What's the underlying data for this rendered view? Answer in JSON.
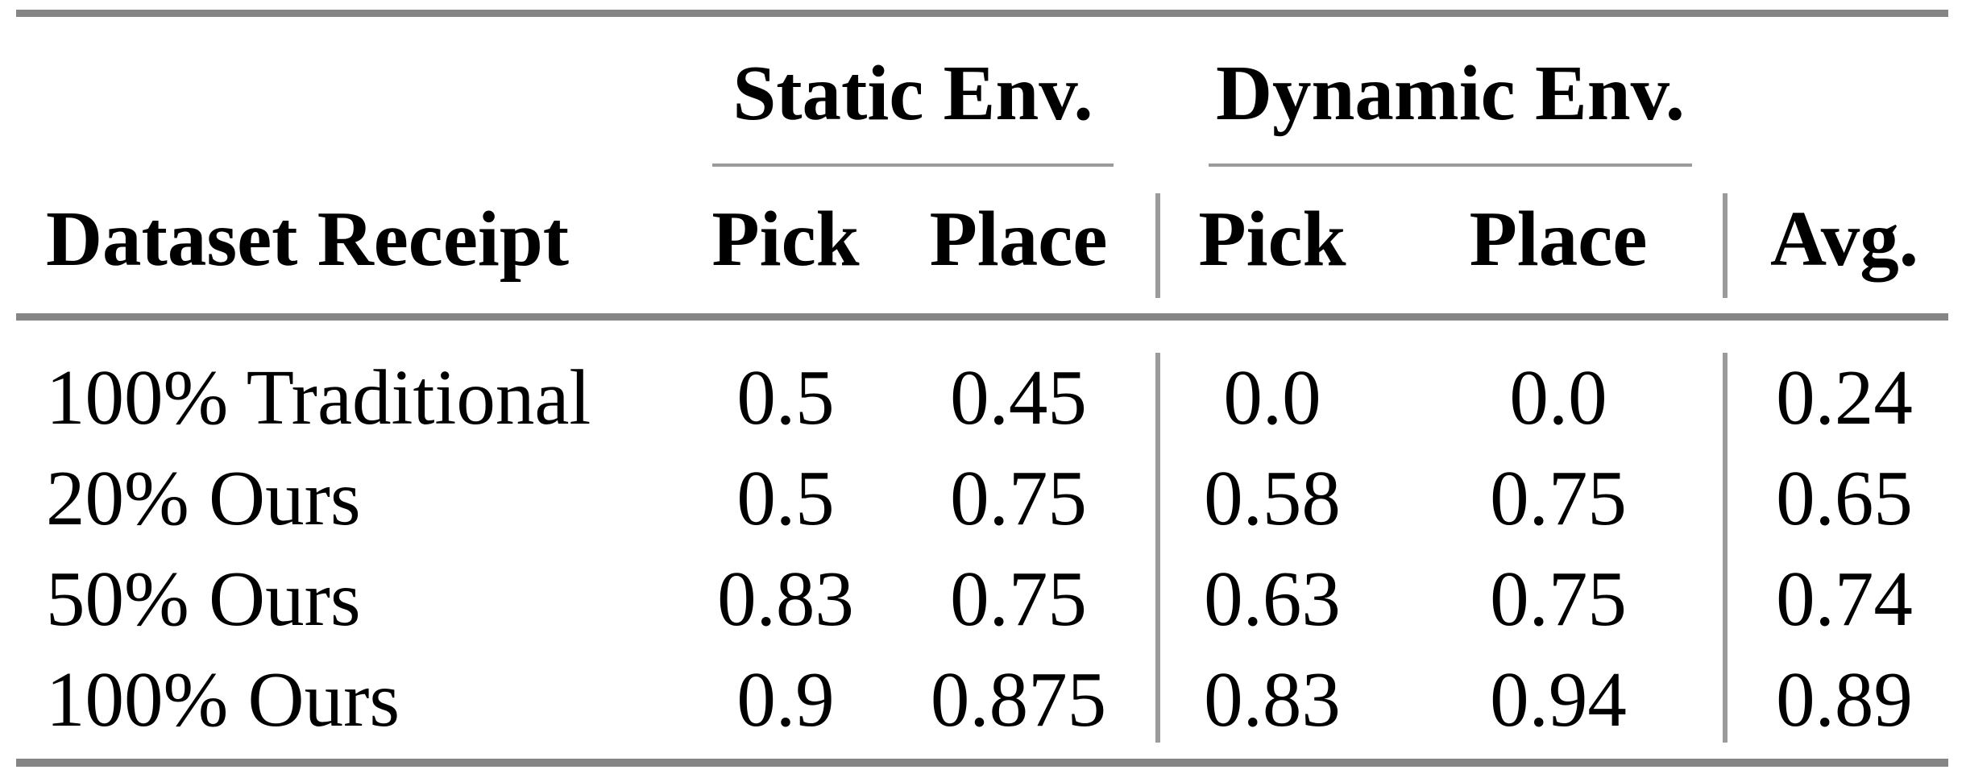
{
  "table": {
    "group_headers": {
      "static": "Static Env.",
      "dynamic": "Dynamic Env."
    },
    "columns": {
      "dataset": "Dataset Receipt",
      "static_pick": "Pick",
      "static_place": "Place",
      "dynamic_pick": "Pick",
      "dynamic_place": "Place",
      "avg": "Avg."
    },
    "rows": [
      {
        "label": "100% Traditional",
        "static_pick": "0.5",
        "static_place": "0.45",
        "dynamic_pick": "0.0",
        "dynamic_place": "0.0",
        "avg": "0.24"
      },
      {
        "label": "20% Ours",
        "static_pick": "0.5",
        "static_place": "0.75",
        "dynamic_pick": "0.58",
        "dynamic_place": "0.75",
        "avg": "0.65"
      },
      {
        "label": "50% Ours",
        "static_pick": "0.83",
        "static_place": "0.75",
        "dynamic_pick": "0.63",
        "dynamic_place": "0.75",
        "avg": "0.74"
      },
      {
        "label": "100% Ours",
        "static_pick": "0.9",
        "static_place": "0.875",
        "dynamic_pick": "0.83",
        "dynamic_place": "0.94",
        "avg": "0.89"
      }
    ],
    "colors": {
      "rule_thick": "#858585",
      "rule_thin": "#9b9b9b",
      "text": "#000000",
      "background": "#ffffff"
    }
  },
  "chart_data": {
    "type": "table",
    "title": "",
    "column_groups": [
      "",
      "Static Env.",
      "Static Env.",
      "Dynamic Env.",
      "Dynamic Env.",
      ""
    ],
    "columns": [
      "Dataset Receipt",
      "Pick",
      "Place",
      "Pick",
      "Place",
      "Avg."
    ],
    "rows": [
      [
        "100% Traditional",
        0.5,
        0.45,
        0.0,
        0.0,
        0.24
      ],
      [
        "20% Ours",
        0.5,
        0.75,
        0.58,
        0.75,
        0.65
      ],
      [
        "50% Ours",
        0.83,
        0.75,
        0.63,
        0.75,
        0.74
      ],
      [
        "100% Ours",
        0.9,
        0.875,
        0.83,
        0.94,
        0.89
      ]
    ]
  }
}
